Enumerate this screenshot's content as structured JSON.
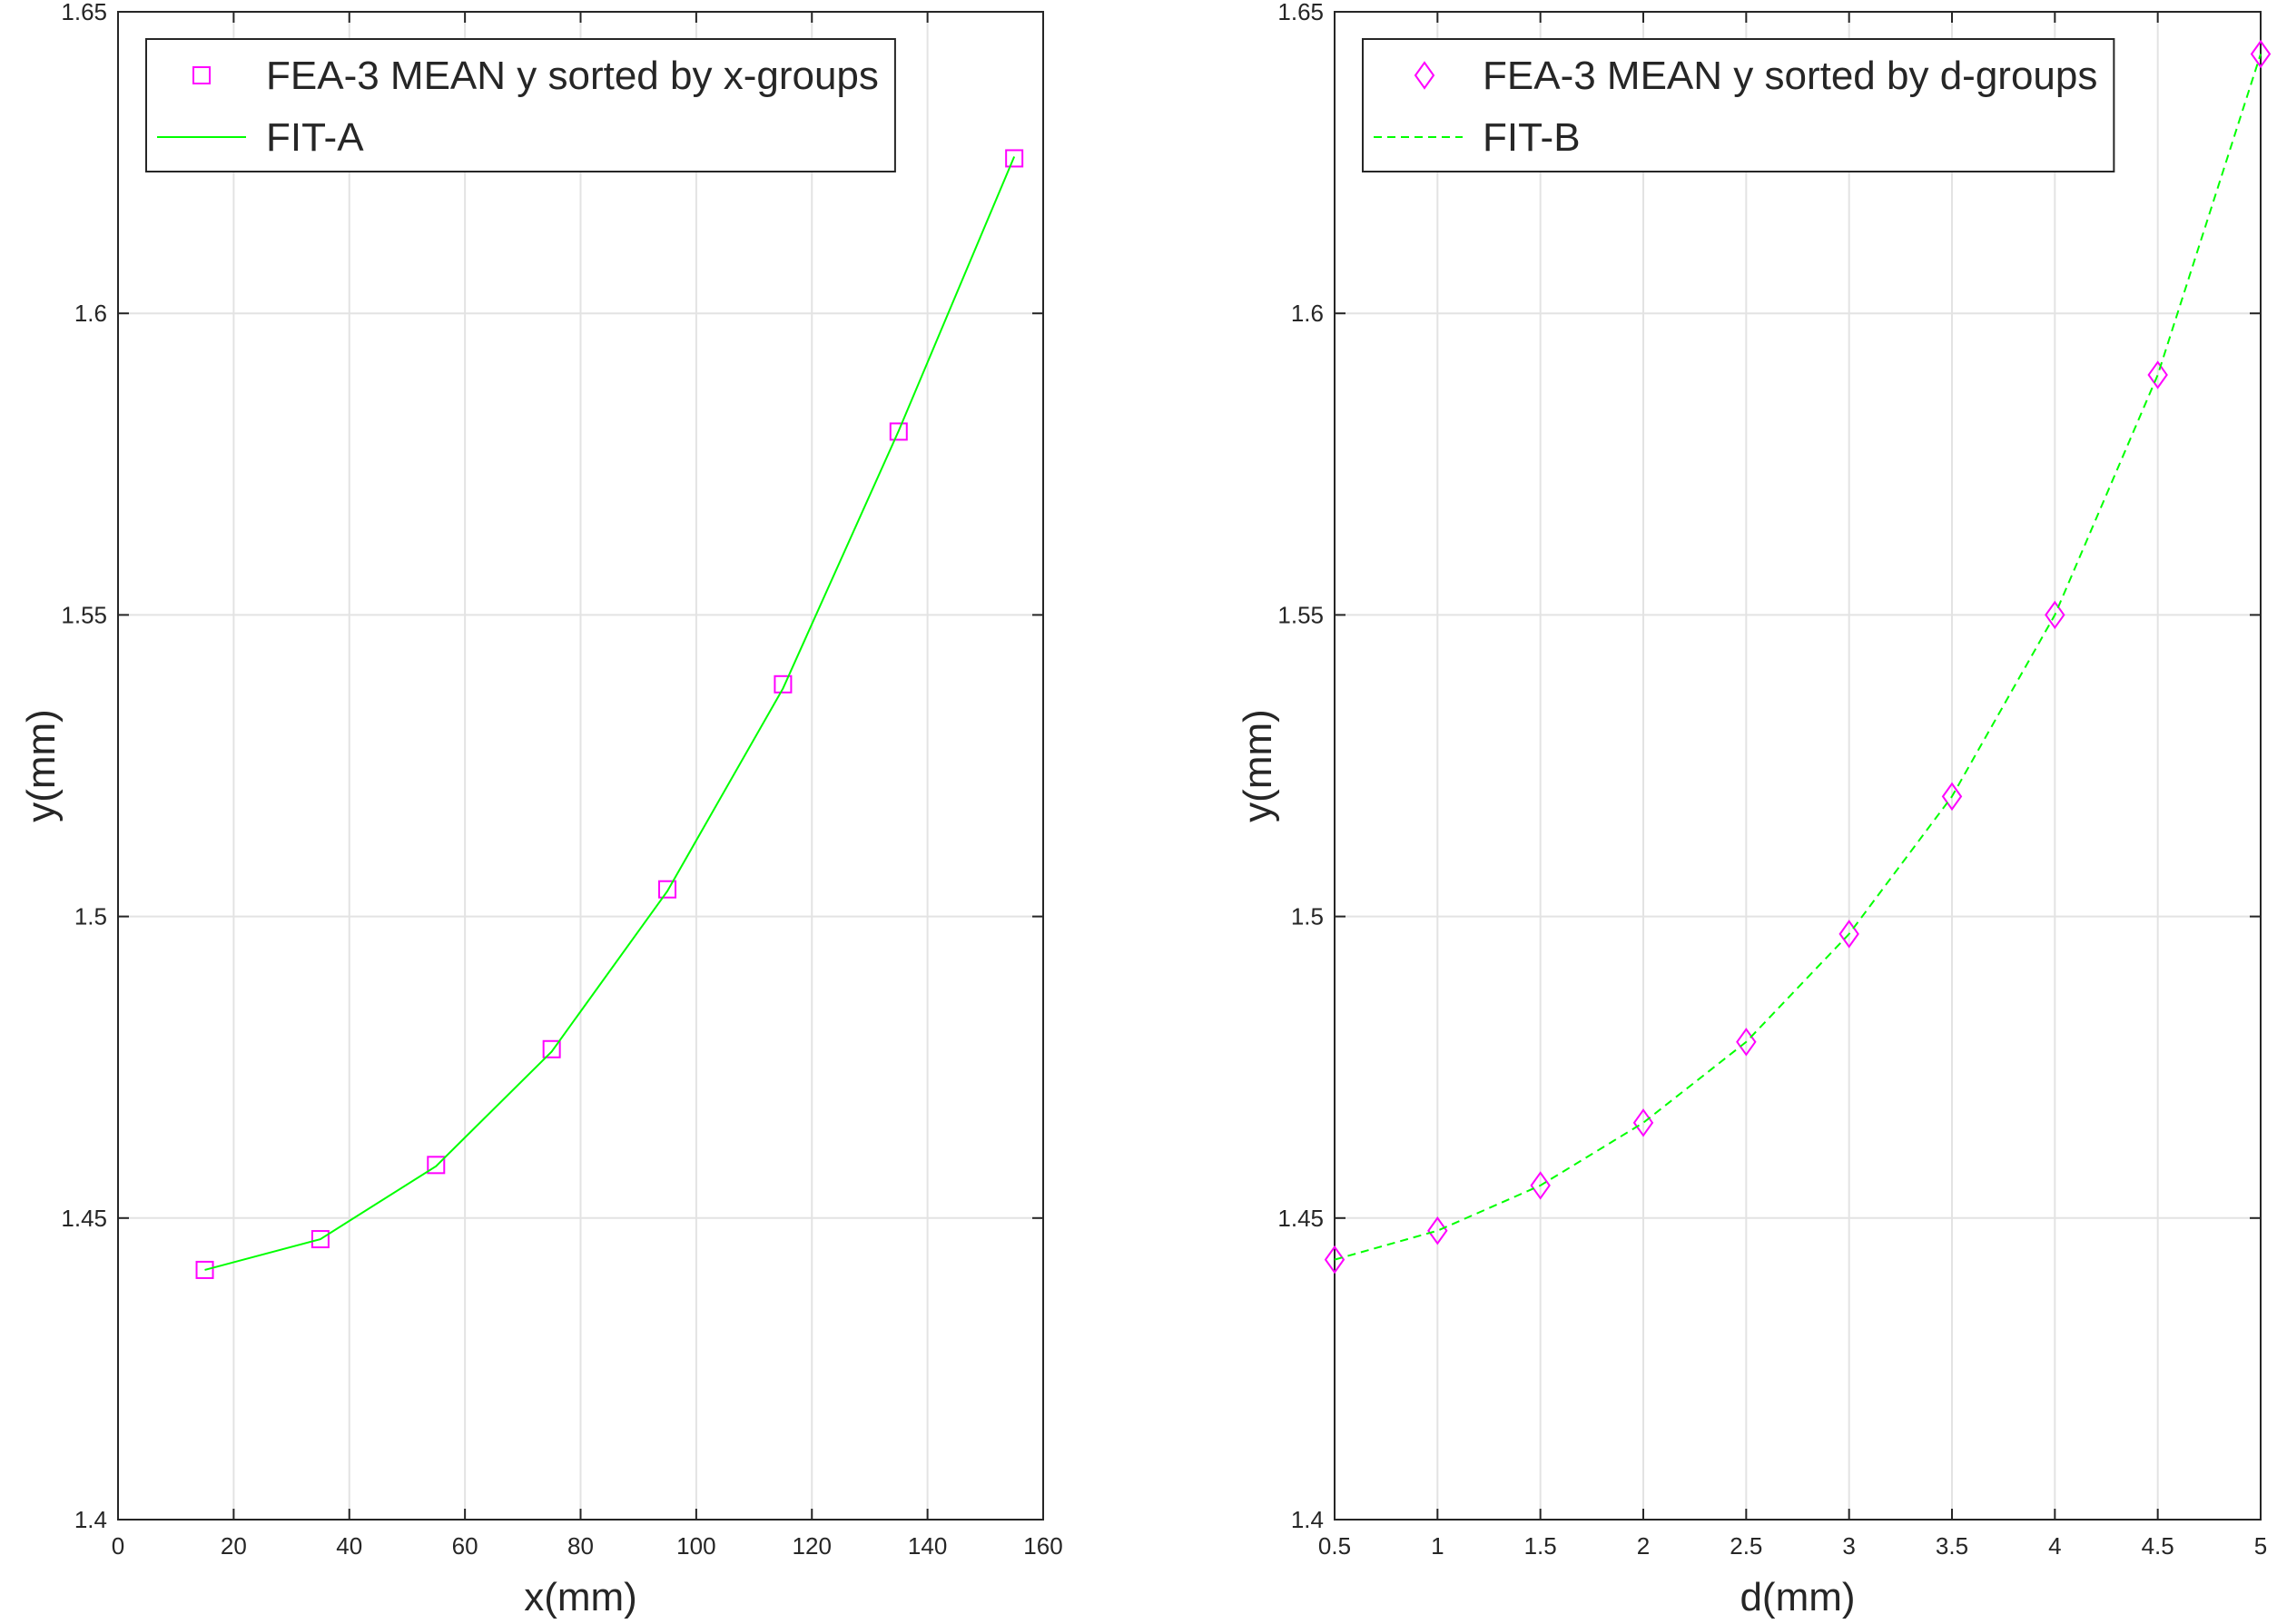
{
  "chart_data": [
    {
      "type": "line",
      "xlabel": "x(mm)",
      "ylabel": "y(mm)",
      "x": [
        15,
        35,
        55,
        75,
        95,
        115,
        135,
        155
      ],
      "xlim": [
        0,
        160
      ],
      "xticks": [
        0,
        20,
        40,
        60,
        80,
        100,
        120,
        140,
        160
      ],
      "ylim": [
        1.4,
        1.65
      ],
      "yticks": [
        1.4,
        1.45,
        1.5,
        1.55,
        1.6,
        1.65
      ],
      "grid": true,
      "legend": "upper-left",
      "series": [
        {
          "name": "FEA-3 MEAN y sorted by x-groups",
          "color": "#ff00ff",
          "marker": "square",
          "line": "none",
          "values": [
            1.4414,
            1.4465,
            1.4588,
            1.478,
            1.5045,
            1.5385,
            1.5804,
            1.6257
          ]
        },
        {
          "name": "FIT-A",
          "color": "#00ff00",
          "marker": "none",
          "line": "solid",
          "values": [
            1.4414,
            1.4465,
            1.4586,
            1.4776,
            1.5042,
            1.5378,
            1.5805,
            1.626
          ]
        }
      ]
    },
    {
      "type": "line",
      "xlabel": "d(mm)",
      "ylabel": "y(mm)",
      "x": [
        0.5,
        1,
        1.5,
        2,
        2.5,
        3,
        3.5,
        4,
        4.5,
        5
      ],
      "xlim": [
        0.5,
        5
      ],
      "xticks": [
        0.5,
        1,
        1.5,
        2,
        2.5,
        3,
        3.5,
        4,
        4.5,
        5
      ],
      "ylim": [
        1.4,
        1.65
      ],
      "yticks": [
        1.4,
        1.45,
        1.5,
        1.55,
        1.6,
        1.65
      ],
      "grid": true,
      "legend": "upper-left",
      "series": [
        {
          "name": "FEA-3 MEAN y sorted by d-groups",
          "color": "#ff00ff",
          "marker": "diamond",
          "line": "none",
          "values": [
            1.4431,
            1.4479,
            1.4554,
            1.4658,
            1.4792,
            1.4971,
            1.5199,
            1.55,
            1.5898,
            1.643
          ]
        },
        {
          "name": "FIT-B",
          "color": "#00ff00",
          "marker": "none",
          "line": "dashed",
          "values": [
            1.4431,
            1.4479,
            1.4554,
            1.4658,
            1.4792,
            1.4971,
            1.5199,
            1.55,
            1.5898,
            1.643
          ]
        }
      ]
    }
  ]
}
